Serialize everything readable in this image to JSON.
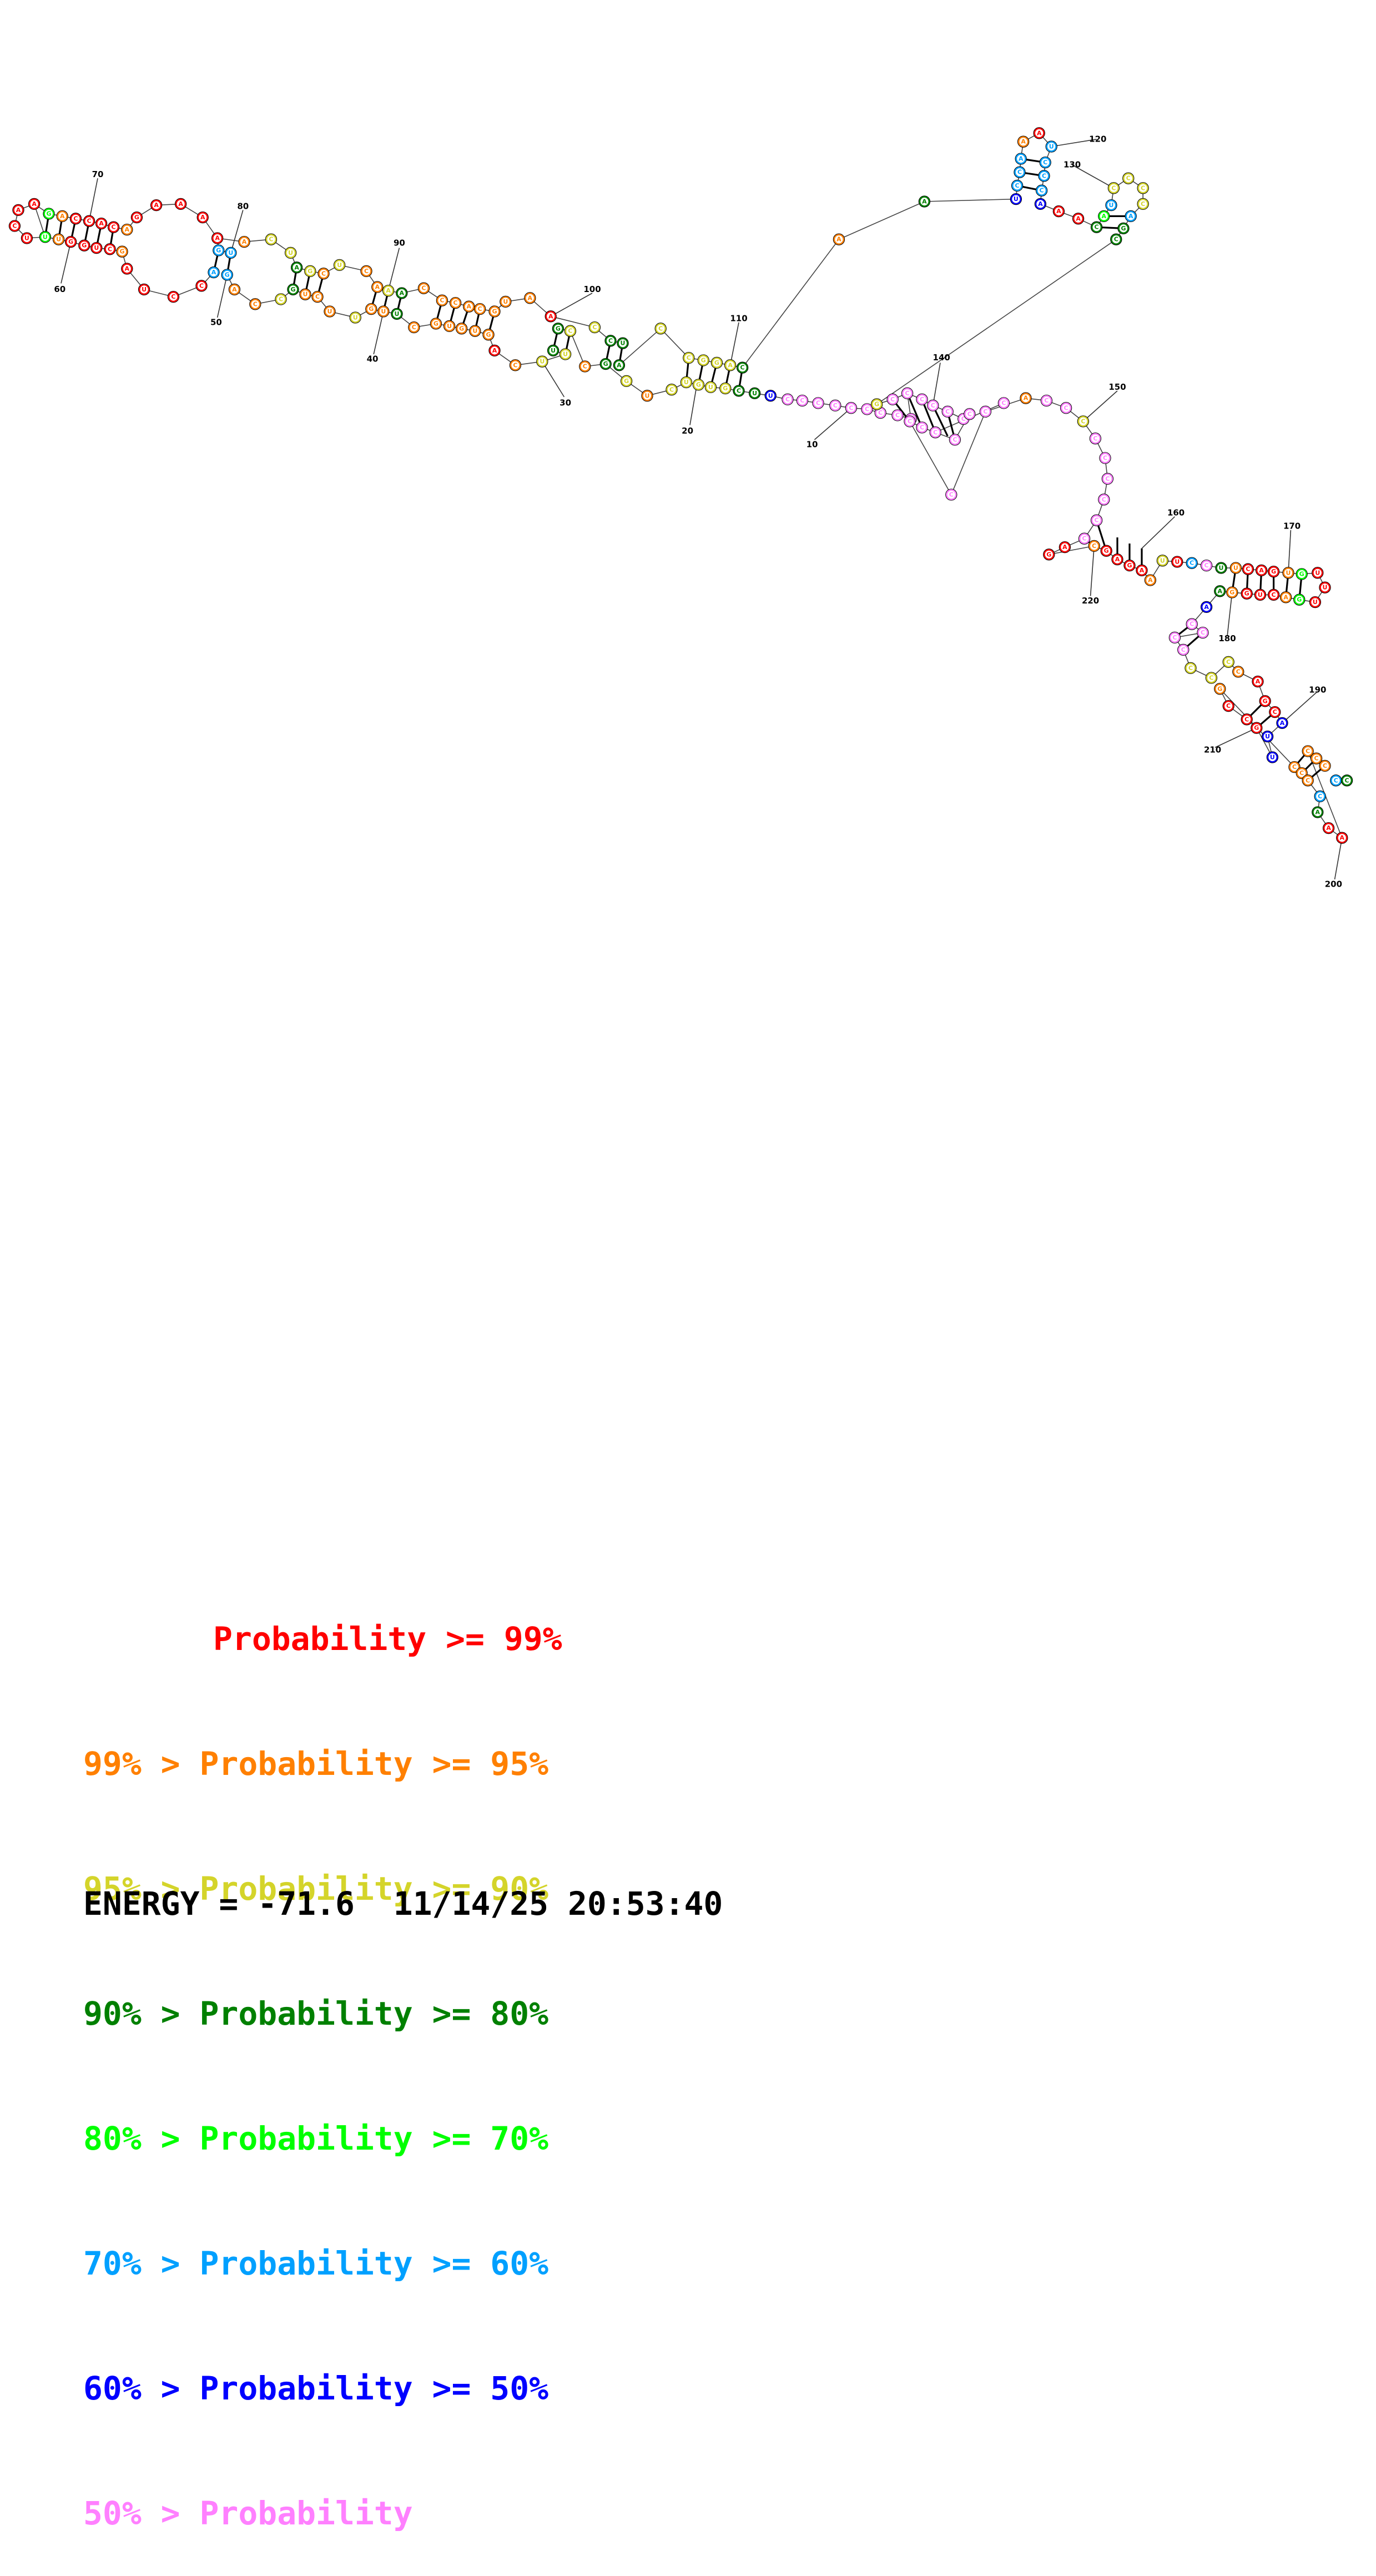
{
  "colors": {
    "p99": "#ff0000",
    "p95": "#ff8000",
    "p90": "#d4d42a",
    "p80": "#008000",
    "p70": "#00ff00",
    "p60": "#00a0ff",
    "p50": "#0000ff",
    "plow": "#ff80ff"
  },
  "index_labels": [
    "10",
    "20",
    "30",
    "40",
    "50",
    "60",
    "70",
    "80",
    "90",
    "100",
    "110",
    "120",
    "130",
    "140",
    "150",
    "160",
    "170",
    "180",
    "190",
    "200",
    "210",
    "220"
  ],
  "legend": [
    {
      "prefix": "    ",
      "text": "Probability >= 99%",
      "color_key": "p99"
    },
    {
      "prefix": "",
      "text": "99% > Probability >= 95%",
      "color_key": "p95"
    },
    {
      "prefix": "",
      "text": "95% > Probability >= 90%",
      "color_key": "p90"
    },
    {
      "prefix": "",
      "text": "90% > Probability >= 80%",
      "color_key": "p80"
    },
    {
      "prefix": "",
      "text": "80% > Probability >= 70%",
      "color_key": "p70"
    },
    {
      "prefix": "",
      "text": "70% > Probability >= 60%",
      "color_key": "p60"
    },
    {
      "prefix": "",
      "text": "60% > Probability >= 50%",
      "color_key": "p50"
    },
    {
      "prefix": "",
      "text": "50% > Probability",
      "color_key": "plow"
    }
  ],
  "footer": {
    "energy": "ENERGY = -71.6  11/14/25 20:53:40"
  }
}
